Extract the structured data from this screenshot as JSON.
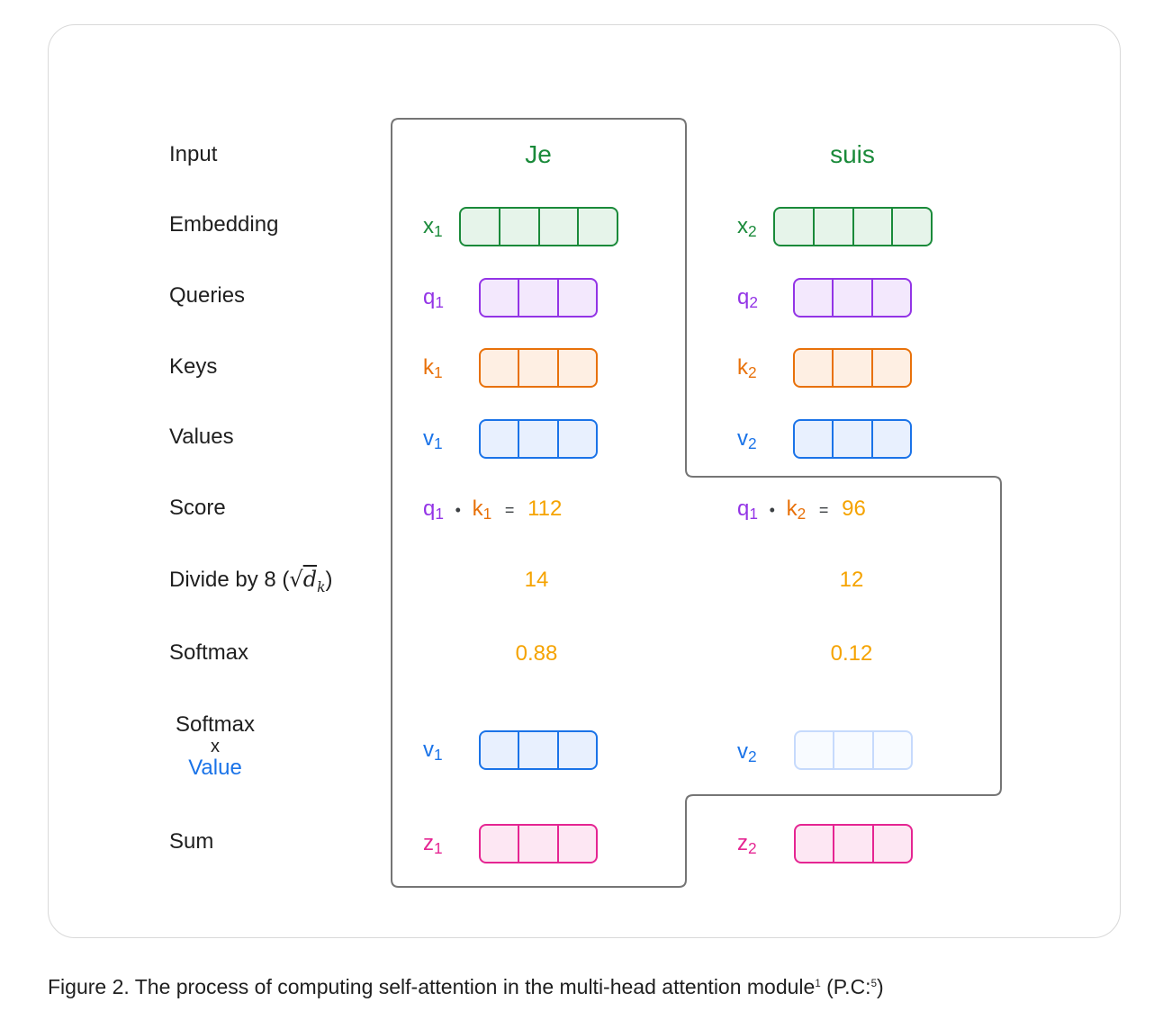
{
  "labels": {
    "input": "Input",
    "embedding": "Embedding",
    "queries": "Queries",
    "keys": "Keys",
    "values": "Values",
    "score": "Score",
    "divide": "Divide by 8 (",
    "divide_sqrt": "√",
    "divide_d": "d",
    "divide_k": "k",
    "divide_close": ")",
    "softmax": "Softmax",
    "softmax_value_1": "Softmax",
    "softmax_value_x": "x",
    "softmax_value_2": "Value",
    "sum": "Sum"
  },
  "tokens": [
    {
      "word": "Je",
      "x_sym": "x",
      "x_sub": "1",
      "q_sym": "q",
      "q_sub": "1",
      "k_sym": "k",
      "k_sub": "1",
      "v_sym": "v",
      "v_sub": "1",
      "score_q": "q",
      "score_q_sub": "1",
      "score_dot": "•",
      "score_k": "k",
      "score_k_sub": "1",
      "score_eq": "=",
      "score_value": "112",
      "divided": "14",
      "softmax": "0.88",
      "sv_sym": "v",
      "sv_sub": "1",
      "z_sym": "z",
      "z_sub": "1"
    },
    {
      "word": "suis",
      "x_sym": "x",
      "x_sub": "2",
      "q_sym": "q",
      "q_sub": "2",
      "k_sym": "k",
      "k_sub": "2",
      "v_sym": "v",
      "v_sub": "2",
      "score_q": "q",
      "score_q_sub": "1",
      "score_dot": "•",
      "score_k": "k",
      "score_k_sub": "2",
      "score_eq": "=",
      "score_value": "96",
      "divided": "12",
      "softmax": "0.12",
      "sv_sym": "v",
      "sv_sub": "2",
      "z_sym": "z",
      "z_sub": "2"
    }
  ],
  "caption": {
    "text": "Figure 2. The process of computing self-attention in the multi-head attention module",
    "sup1": "1",
    "pc_open": " (P.C:",
    "sup2": "5",
    "pc_close": ")"
  },
  "colors": {
    "embedding": "#1a8a3a",
    "query": "#9334e6",
    "key": "#e8710a",
    "value": "#1a73e8",
    "sum": "#e52592",
    "number": "#f5a300",
    "outline": "#757575"
  }
}
